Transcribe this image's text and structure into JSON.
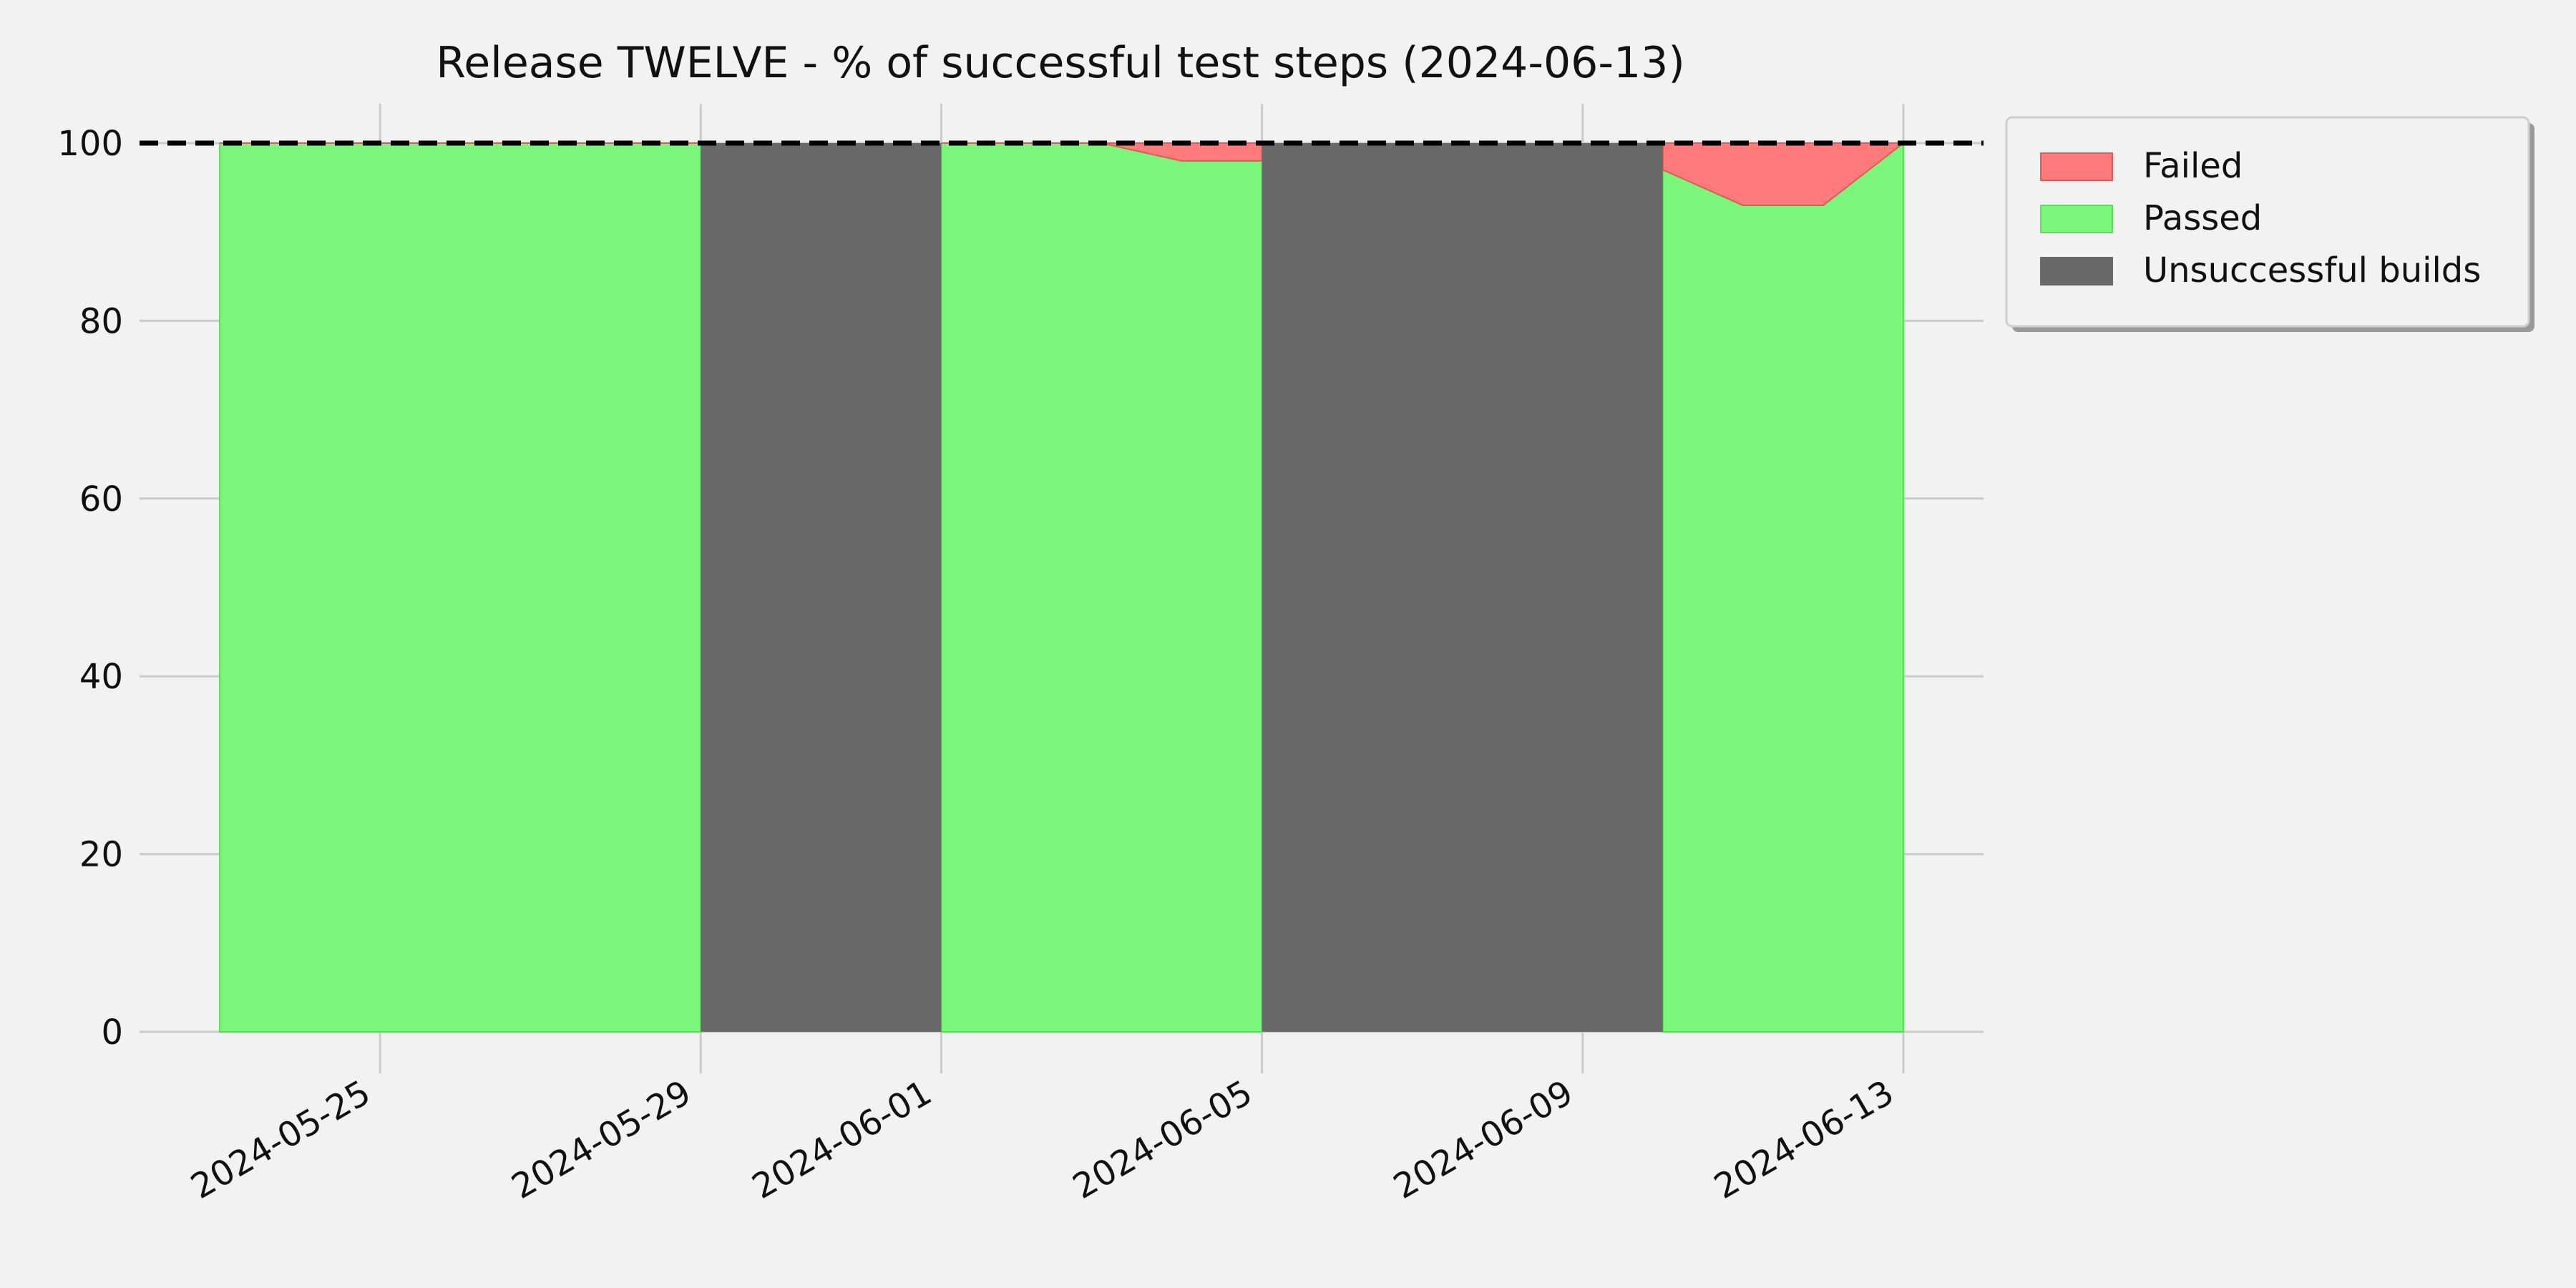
{
  "chart_data": {
    "type": "area",
    "title": "Release TWELVE - % of successful test steps (2024-06-13)",
    "xlabel": "",
    "ylabel": "",
    "ylim": [
      0,
      100
    ],
    "xlim": [
      "2024-05-22",
      "2024-06-14"
    ],
    "x_ticks": [
      "2024-05-25",
      "2024-05-29",
      "2024-06-01",
      "2024-06-05",
      "2024-06-09",
      "2024-06-13"
    ],
    "y_ticks": [
      0,
      20,
      40,
      60,
      80,
      100
    ],
    "grid": true,
    "legend": "outside-right-top",
    "target_line": {
      "value": 100,
      "style": "dashed",
      "color": "#000000"
    },
    "colors": {
      "failed": "#ff7b7b",
      "passed": "#7af77a",
      "unsuccessful": "#696969",
      "background": "#f2f2f2",
      "grid": "#cbcbcb"
    },
    "series": [
      {
        "name": "Passed",
        "points": [
          {
            "x": "2024-05-23",
            "y": 100
          },
          {
            "x": "2024-05-28",
            "y": 100
          },
          {
            "x": "2024-05-29",
            "y": 100
          },
          {
            "x": "2024-06-01",
            "y": 100
          },
          {
            "x": "2024-06-03",
            "y": 100
          },
          {
            "x": "2024-06-04",
            "y": 98
          },
          {
            "x": "2024-06-05",
            "y": 98
          },
          {
            "x": "2024-06-10",
            "y": 97
          },
          {
            "x": "2024-06-11",
            "y": 93
          },
          {
            "x": "2024-06-12",
            "y": 93
          },
          {
            "x": "2024-06-13",
            "y": 100
          }
        ]
      },
      {
        "name": "Failed",
        "points": [
          {
            "x": "2024-05-23",
            "y": 0
          },
          {
            "x": "2024-05-28",
            "y": 0
          },
          {
            "x": "2024-05-29",
            "y": 0
          },
          {
            "x": "2024-06-01",
            "y": 0
          },
          {
            "x": "2024-06-03",
            "y": 0
          },
          {
            "x": "2024-06-04",
            "y": 2
          },
          {
            "x": "2024-06-05",
            "y": 2
          },
          {
            "x": "2024-06-10",
            "y": 3
          },
          {
            "x": "2024-06-11",
            "y": 7
          },
          {
            "x": "2024-06-12",
            "y": 7
          },
          {
            "x": "2024-06-13",
            "y": 0
          }
        ]
      },
      {
        "name": "Unsuccessful builds",
        "ranges": [
          {
            "start": "2024-05-29",
            "end": "2024-06-01"
          },
          {
            "start": "2024-06-05",
            "end": "2024-06-10"
          }
        ]
      }
    ]
  }
}
